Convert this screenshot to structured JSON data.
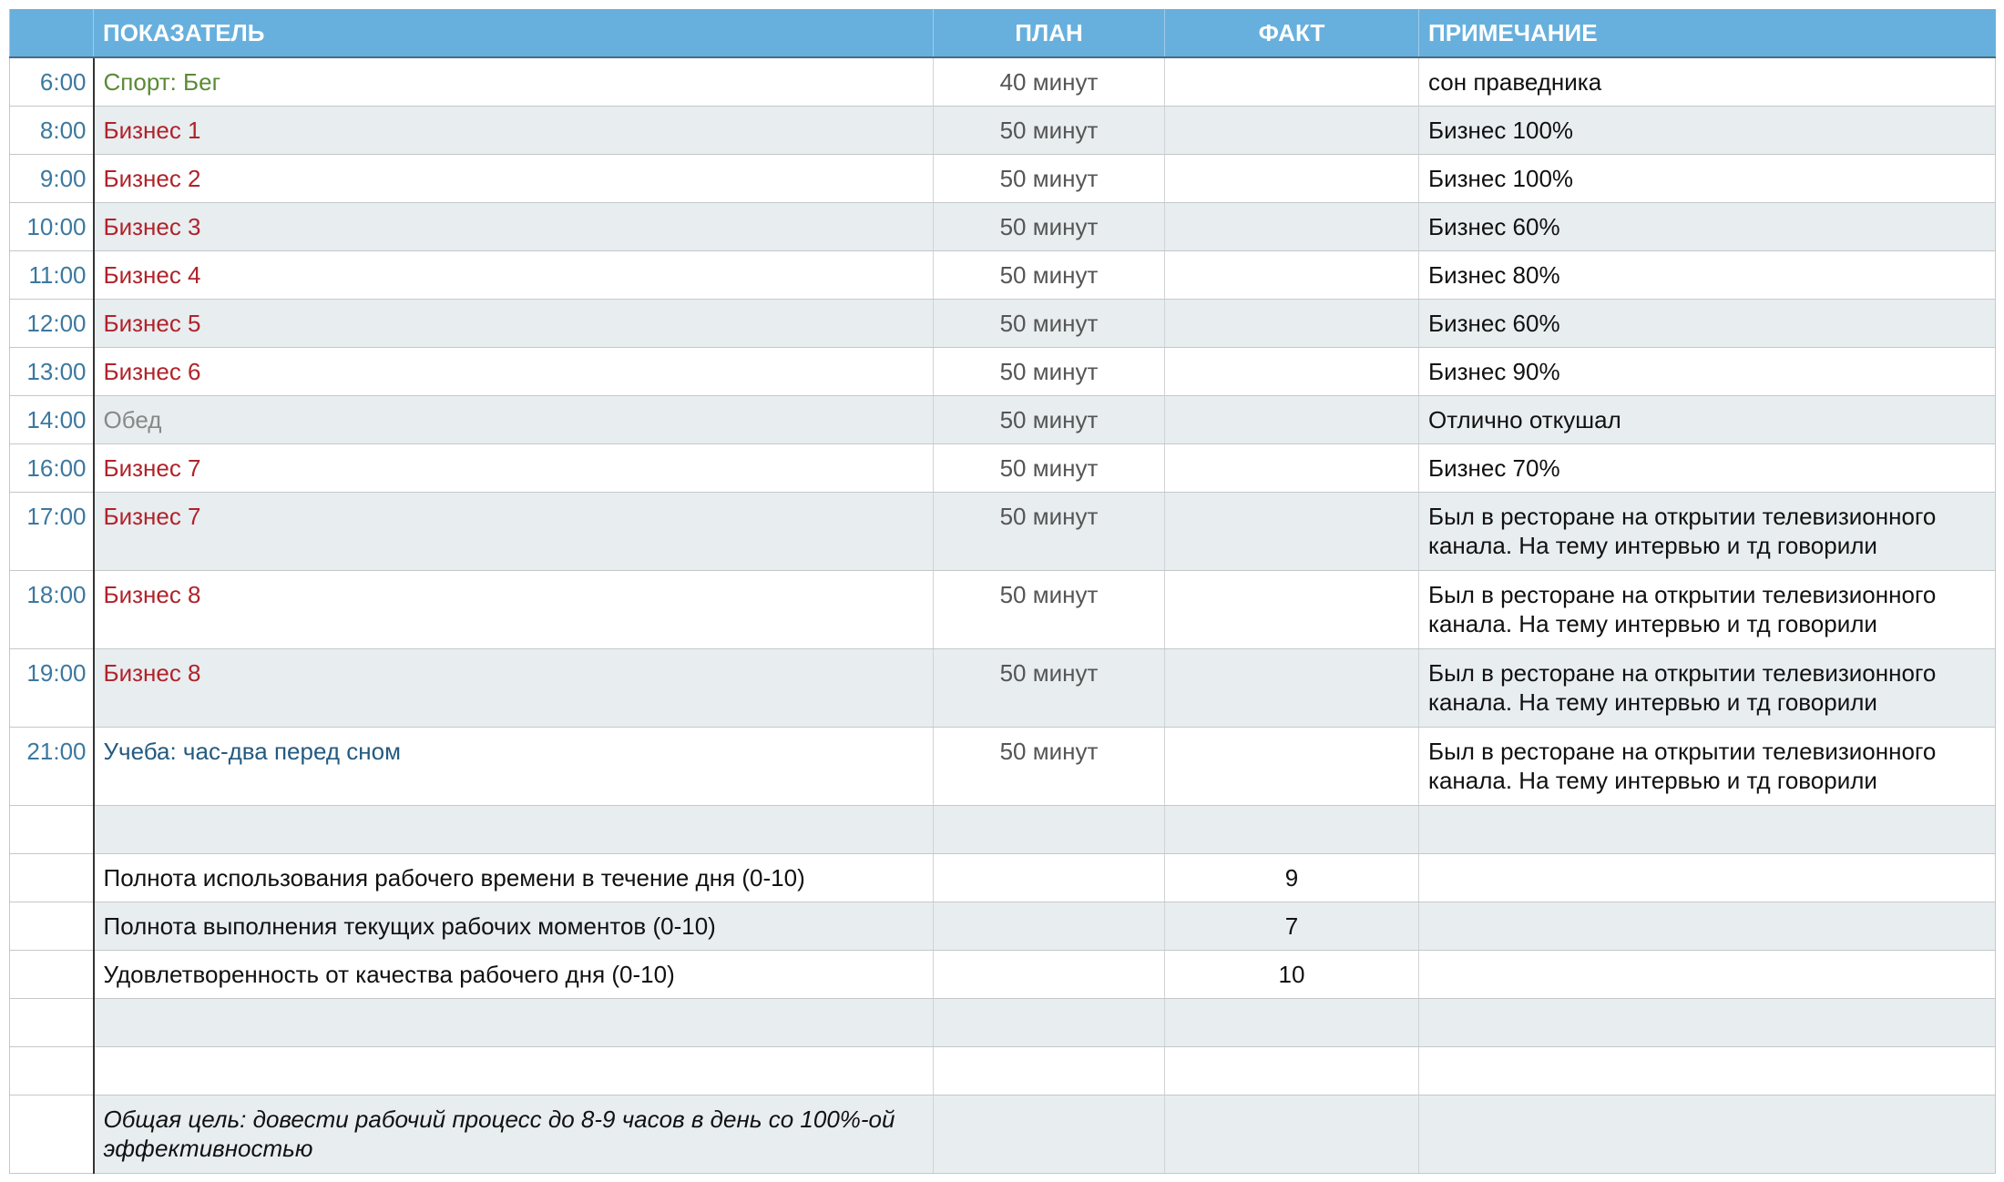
{
  "colors": {
    "header_bg": "#67b0dd",
    "alt_row": "#e8edf0",
    "time": "#3b78a0",
    "sport": "#5a8a34",
    "business": "#b0232a",
    "lunch": "#888888",
    "study": "#245a80"
  },
  "header": {
    "indicator": "ПОКАЗАТЕЛЬ",
    "plan": "ПЛАН",
    "fact": "ФАКТ",
    "note": "ПРИМЕЧАНИЕ"
  },
  "rows": [
    {
      "time": "6:00",
      "indicator": "Спорт: Бег",
      "kind": "sport",
      "plan": "40 минут",
      "fact": "",
      "note": "сон праведника"
    },
    {
      "time": "8:00",
      "indicator": "Бизнес 1",
      "kind": "business",
      "plan": "50 минут",
      "fact": "",
      "note": "Бизнес 100%"
    },
    {
      "time": "9:00",
      "indicator": "Бизнес 2",
      "kind": "business",
      "plan": "50 минут",
      "fact": "",
      "note": "Бизнес 100%"
    },
    {
      "time": "10:00",
      "indicator": "Бизнес 3",
      "kind": "business",
      "plan": "50 минут",
      "fact": "",
      "note": "Бизнес 60%"
    },
    {
      "time": "11:00",
      "indicator": "Бизнес 4",
      "kind": "business",
      "plan": "50 минут",
      "fact": "",
      "note": "Бизнес 80%"
    },
    {
      "time": "12:00",
      "indicator": "Бизнес 5",
      "kind": "business",
      "plan": "50 минут",
      "fact": "",
      "note": "Бизнес 60%"
    },
    {
      "time": "13:00",
      "indicator": "Бизнес 6",
      "kind": "business",
      "plan": "50 минут",
      "fact": "",
      "note": "Бизнес 90%"
    },
    {
      "time": "14:00",
      "indicator": "Обед",
      "kind": "lunch",
      "plan": "50 минут",
      "fact": "",
      "note": "Отлично откушал"
    },
    {
      "time": "16:00",
      "indicator": "Бизнес 7",
      "kind": "business",
      "plan": "50 минут",
      "fact": "",
      "note": "Бизнес 70%"
    },
    {
      "time": "17:00",
      "indicator": "Бизнес 7",
      "kind": "business",
      "plan": "50 минут",
      "fact": "",
      "note": "Был в ресторане на открытии телевизионного канала. На тему интервью и тд говорили"
    },
    {
      "time": "18:00",
      "indicator": "Бизнес 8",
      "kind": "business",
      "plan": "50 минут",
      "fact": "",
      "note": "Был в ресторане на открытии телевизионного канала. На тему интервью и тд говорили"
    },
    {
      "time": "19:00",
      "indicator": "Бизнес 8",
      "kind": "business",
      "plan": "50 минут",
      "fact": "",
      "note": "Был в ресторане на открытии телевизионного канала. На тему интервью и тд говорили"
    },
    {
      "time": "21:00",
      "indicator": "Учеба: час-два перед сном",
      "kind": "study",
      "plan": "50 минут",
      "fact": "",
      "note": "Был в ресторане на открытии телевизионного канала. На тему интервью и тд говорили"
    },
    {
      "time": "",
      "indicator": "",
      "kind": "",
      "plan": "",
      "fact": "",
      "note": ""
    },
    {
      "time": "",
      "indicator": "Полнота использования рабочего времени в течение дня (0-10)",
      "kind": "",
      "plan": "",
      "fact": "9",
      "note": ""
    },
    {
      "time": "",
      "indicator": "Полнота выполнения текущих рабочих моментов (0-10)",
      "kind": "",
      "plan": "",
      "fact": "7",
      "note": ""
    },
    {
      "time": "",
      "indicator": "Удовлетворенность от качества рабочего дня (0-10)",
      "kind": "",
      "plan": "",
      "fact": "10",
      "note": ""
    },
    {
      "time": "",
      "indicator": "",
      "kind": "",
      "plan": "",
      "fact": "",
      "note": ""
    },
    {
      "time": "",
      "indicator": "",
      "kind": "",
      "plan": "",
      "fact": "",
      "note": ""
    },
    {
      "time": "",
      "indicator": "Общая цель: довести рабочий процесс до 8-9 часов в день со 100%-ой эффективностью",
      "kind": "goal",
      "plan": "",
      "fact": "",
      "note": ""
    }
  ]
}
